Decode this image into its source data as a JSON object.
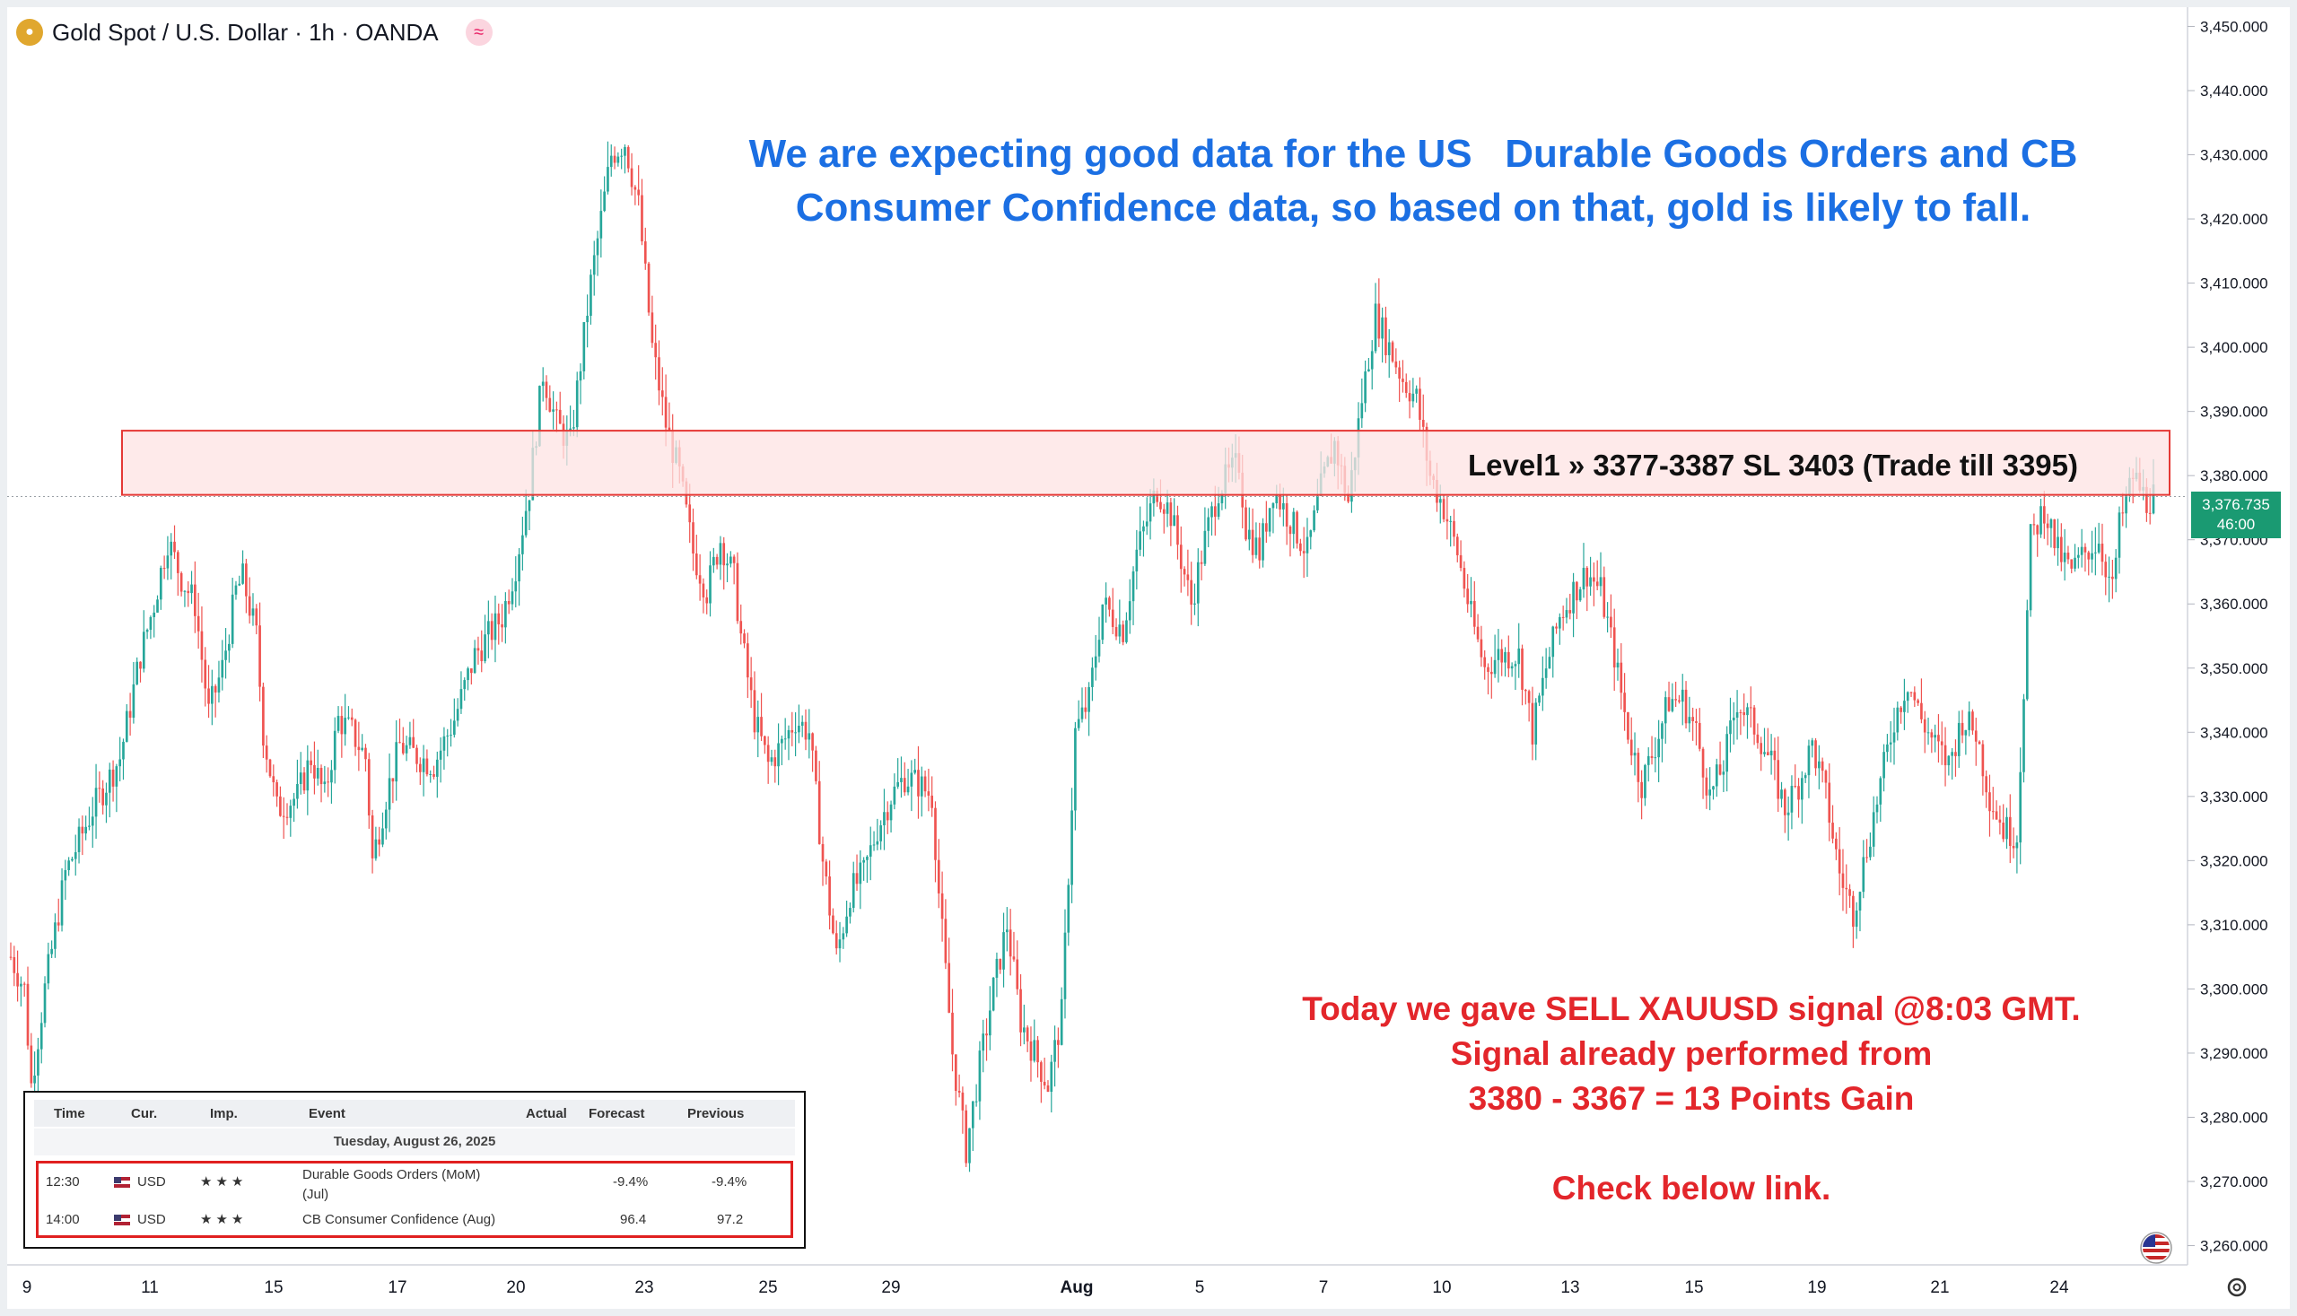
{
  "header": {
    "symbol_title": "Gold Spot / U.S. Dollar · 1h · OANDA"
  },
  "chart_data": {
    "type": "candlestick",
    "title": "Gold Spot / U.S. Dollar · 1h · OANDA",
    "x_tick_labels": [
      "9",
      "11",
      "15",
      "17",
      "20",
      "23",
      "25",
      "29",
      "Aug",
      "5",
      "7",
      "10",
      "13",
      "15",
      "19",
      "21",
      "24"
    ],
    "y_tick_labels": [
      "3,450.000",
      "3,440.000",
      "3,430.000",
      "3,420.000",
      "3,410.000",
      "3,400.000",
      "3,390.000",
      "3,380.000",
      "3,370.000",
      "3,360.000",
      "3,350.000",
      "3,340.000",
      "3,330.000",
      "3,320.000",
      "3,310.000",
      "3,300.000",
      "3,290.000",
      "3,280.000",
      "3,270.000",
      "3,260.000"
    ],
    "ylim": [
      3257,
      3453
    ],
    "price_path": [
      [
        0,
        3305
      ],
      [
        2,
        3300
      ],
      [
        3,
        3285
      ],
      [
        5,
        3300
      ],
      [
        8,
        3318
      ],
      [
        12,
        3328
      ],
      [
        16,
        3336
      ],
      [
        19,
        3352
      ],
      [
        21,
        3360
      ],
      [
        23,
        3370
      ],
      [
        25,
        3364
      ],
      [
        27,
        3360
      ],
      [
        29,
        3343
      ],
      [
        31,
        3350
      ],
      [
        33,
        3362
      ],
      [
        34,
        3364
      ],
      [
        36,
        3355
      ],
      [
        37,
        3340
      ],
      [
        39,
        3328
      ],
      [
        42,
        3330
      ],
      [
        44,
        3336
      ],
      [
        46,
        3330
      ],
      [
        48,
        3342
      ],
      [
        50,
        3340
      ],
      [
        52,
        3336
      ],
      [
        53,
        3320
      ],
      [
        55,
        3330
      ],
      [
        57,
        3338
      ],
      [
        60,
        3336
      ],
      [
        62,
        3335
      ],
      [
        65,
        3342
      ],
      [
        68,
        3352
      ],
      [
        70,
        3355
      ],
      [
        72,
        3358
      ],
      [
        74,
        3366
      ],
      [
        76,
        3378
      ],
      [
        78,
        3396
      ],
      [
        80,
        3388
      ],
      [
        82,
        3385
      ],
      [
        85,
        3410
      ],
      [
        88,
        3430
      ],
      [
        90,
        3432
      ],
      [
        92,
        3422
      ],
      [
        94,
        3400
      ],
      [
        96,
        3388
      ],
      [
        98,
        3380
      ],
      [
        100,
        3368
      ],
      [
        102,
        3362
      ],
      [
        104,
        3370
      ],
      [
        106,
        3364
      ],
      [
        107,
        3355
      ],
      [
        109,
        3342
      ],
      [
        111,
        3335
      ],
      [
        113,
        3338
      ],
      [
        115,
        3342
      ],
      [
        117,
        3340
      ],
      [
        119,
        3320
      ],
      [
        121,
        3305
      ],
      [
        123,
        3315
      ],
      [
        125,
        3318
      ],
      [
        127,
        3325
      ],
      [
        129,
        3330
      ],
      [
        131,
        3333
      ],
      [
        133,
        3332
      ],
      [
        135,
        3330
      ],
      [
        136,
        3315
      ],
      [
        138,
        3290
      ],
      [
        140,
        3275
      ],
      [
        142,
        3288
      ],
      [
        144,
        3300
      ],
      [
        146,
        3310
      ],
      [
        148,
        3295
      ],
      [
        150,
        3290
      ],
      [
        152,
        3285
      ],
      [
        154,
        3296
      ],
      [
        156,
        3340
      ],
      [
        158,
        3345
      ],
      [
        160,
        3360
      ],
      [
        163,
        3356
      ],
      [
        165,
        3368
      ],
      [
        168,
        3378
      ],
      [
        170,
        3374
      ],
      [
        173,
        3360
      ],
      [
        175,
        3370
      ],
      [
        177,
        3378
      ],
      [
        180,
        3382
      ],
      [
        181,
        3372
      ],
      [
        183,
        3368
      ],
      [
        185,
        3378
      ],
      [
        187,
        3374
      ],
      [
        190,
        3368
      ],
      [
        192,
        3378
      ],
      [
        194,
        3385
      ],
      [
        196,
        3376
      ],
      [
        198,
        3392
      ],
      [
        200,
        3405
      ],
      [
        202,
        3400
      ],
      [
        204,
        3395
      ],
      [
        206,
        3392
      ],
      [
        208,
        3380
      ],
      [
        210,
        3375
      ],
      [
        212,
        3368
      ],
      [
        214,
        3358
      ],
      [
        216,
        3350
      ],
      [
        218,
        3352
      ],
      [
        221,
        3352
      ],
      [
        223,
        3340
      ],
      [
        225,
        3350
      ],
      [
        227,
        3358
      ],
      [
        229,
        3362
      ],
      [
        231,
        3365
      ],
      [
        233,
        3362
      ],
      [
        235,
        3352
      ],
      [
        237,
        3340
      ],
      [
        239,
        3332
      ],
      [
        241,
        3338
      ],
      [
        243,
        3345
      ],
      [
        245,
        3345
      ],
      [
        247,
        3340
      ],
      [
        249,
        3330
      ],
      [
        251,
        3335
      ],
      [
        253,
        3345
      ],
      [
        256,
        3340
      ],
      [
        258,
        3335
      ],
      [
        260,
        3328
      ],
      [
        262,
        3332
      ],
      [
        264,
        3338
      ],
      [
        266,
        3330
      ],
      [
        268,
        3318
      ],
      [
        270,
        3312
      ],
      [
        272,
        3322
      ],
      [
        274,
        3332
      ],
      [
        276,
        3342
      ],
      [
        278,
        3348
      ],
      [
        280,
        3342
      ],
      [
        282,
        3338
      ],
      [
        284,
        3335
      ],
      [
        286,
        3342
      ],
      [
        288,
        3340
      ],
      [
        290,
        3330
      ],
      [
        292,
        3325
      ],
      [
        294,
        3324
      ],
      [
        296,
        3370
      ],
      [
        298,
        3375
      ],
      [
        300,
        3368
      ],
      [
        302,
        3365
      ],
      [
        304,
        3368
      ],
      [
        306,
        3370
      ],
      [
        308,
        3362
      ],
      [
        309,
        3372
      ],
      [
        311,
        3380
      ],
      [
        313,
        3376
      ],
      [
        314,
        3377
      ]
    ],
    "level_zone": {
      "low": 3377,
      "high": 3387,
      "label": "Level1 » 3377-3387 SL 3403 (Trade till 3395)"
    },
    "last_price": {
      "value": "3,376.735",
      "countdown": "46:00"
    },
    "annotations": {
      "headline": "We are expecting good data for the US   Durable Goods Orders and CB\nConsumer Confidence data, so based on that, gold is likely to fall.",
      "signal_lines": [
        "Today we gave SELL XAUUSD signal @8:03 GMT.",
        "Signal already performed from",
        "3380 - 3367 = 13 Points Gain",
        "",
        "Check below link."
      ]
    }
  },
  "calendar": {
    "headers": [
      "Time",
      "Cur.",
      "Imp.",
      "Event",
      "Actual",
      "Forecast",
      "Previous"
    ],
    "date": "Tuesday, August 26, 2025",
    "rows": [
      {
        "time": "12:30",
        "currency": "USD",
        "event": "Durable Goods Orders (MoM)",
        "event_sub": "(Jul)",
        "actual": "",
        "forecast": "-9.4%",
        "previous": "-9.4%"
      },
      {
        "time": "14:00",
        "currency": "USD",
        "event": "CB Consumer Confidence (Aug)",
        "event_sub": "",
        "actual": "",
        "forecast": "96.4",
        "previous": "97.2"
      }
    ],
    "importance_stars": "★★★"
  },
  "colors": {
    "up": "#26a69a",
    "down": "#ef5350",
    "zone_fill": "#fde3e3",
    "zone_border": "#e53935",
    "headline": "#1b6fe3",
    "signal": "#e3262b",
    "price_tag": "#1a9a72"
  }
}
